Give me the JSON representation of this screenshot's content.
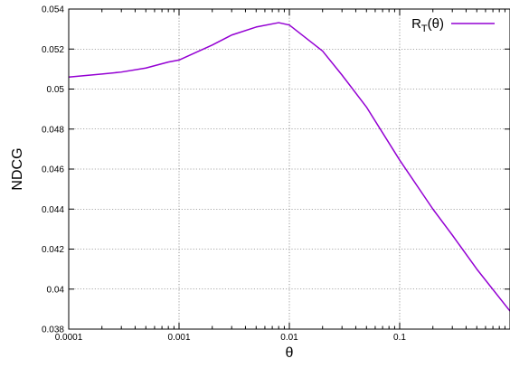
{
  "chart_data": {
    "type": "line",
    "title": "",
    "xlabel": "θ",
    "ylabel": "NDCG",
    "x_scale": "log",
    "xlim": [
      0.0001,
      1
    ],
    "ylim": [
      0.038,
      0.054
    ],
    "grid": true,
    "legend_position": "top-right",
    "x_tick_labels": [
      "0.0001",
      "0.001",
      "0.01",
      "0.1"
    ],
    "x_ticks": [
      0.0001,
      0.001,
      0.01,
      0.1
    ],
    "y_tick_labels": [
      "0.038",
      "0.04",
      "0.042",
      "0.044",
      "0.046",
      "0.048",
      "0.05",
      "0.052",
      "0.054"
    ],
    "y_ticks": [
      0.038,
      0.04,
      0.042,
      0.044,
      0.046,
      0.048,
      0.05,
      0.052,
      0.054
    ],
    "series": [
      {
        "name_main": "R",
        "name_sub": "T",
        "name_tail": "(θ)",
        "color": "#9400d3",
        "x": [
          0.0001,
          0.0002,
          0.0003,
          0.0005,
          0.0008,
          0.001,
          0.002,
          0.003,
          0.005,
          0.008,
          0.01,
          0.02,
          0.03,
          0.05,
          0.1,
          0.2,
          0.3,
          0.5,
          1.0
        ],
        "y": [
          0.0506,
          0.05075,
          0.05085,
          0.05105,
          0.05135,
          0.05145,
          0.0522,
          0.0527,
          0.0531,
          0.05332,
          0.0532,
          0.0519,
          0.0507,
          0.0491,
          0.04645,
          0.044,
          0.0427,
          0.041,
          0.0389
        ]
      }
    ]
  }
}
